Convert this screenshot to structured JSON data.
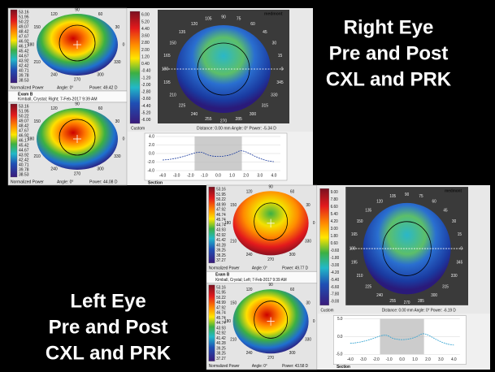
{
  "right_label": [
    "Right Eye",
    "Pre and Post",
    "CXL and PRK"
  ],
  "left_label": [
    "Left Eye",
    "Pre and Post",
    "CXL and PRK"
  ],
  "screens": [
    {
      "logo": "medmont",
      "map1": {
        "scale": [
          "53.16",
          "51.95",
          "50.22",
          "49.07",
          "48.42",
          "47.67",
          "46.92",
          "46.17",
          "45.42",
          "44.67",
          "43.92",
          "42.42",
          "40.71",
          "39.78",
          "38.53"
        ],
        "footer": [
          "Normalized Power",
          "Angle: 0°",
          "Power: 49.42 D"
        ],
        "angles": [
          "90",
          "120",
          "150",
          "180",
          "210",
          "240",
          "270",
          "300",
          "330",
          "0",
          "30",
          "60"
        ]
      },
      "exam": {
        "title": "Exam B",
        "patient": "Kimball, Crystal; Right; 7-Feb-2017 9:39 AM"
      },
      "map2": {
        "scale": [
          "53.16",
          "51.95",
          "50.22",
          "49.07",
          "48.42",
          "47.67",
          "46.92",
          "46.17",
          "45.42",
          "44.67",
          "43.92",
          "42.42",
          "40.71",
          "39.78",
          "38.53"
        ],
        "footer": [
          "Normalized Power",
          "Angle: 0°",
          "Power: 44.08 D"
        ],
        "angles": [
          "90",
          "120",
          "150",
          "180",
          "210",
          "240",
          "270",
          "300",
          "330",
          "0",
          "30",
          "60"
        ]
      },
      "diff": {
        "scale": [
          "6.00",
          "5.20",
          "4.40",
          "3.60",
          "2.80",
          "2.00",
          "1.20",
          "0.40",
          "-0.40",
          "-1.20",
          "-2.00",
          "-2.80",
          "-3.60",
          "-4.40",
          "-5.20",
          "-6.00"
        ],
        "custom": "Custom",
        "status": "Distance: 0.00 mm   Angle: 0°   Power: -5.34 D",
        "angles": [
          "90",
          "105",
          "120",
          "135",
          "150",
          "165",
          "180",
          "195",
          "210",
          "225",
          "240",
          "255",
          "270",
          "285",
          "300",
          "315",
          "330",
          "345",
          "0",
          "15",
          "30",
          "45",
          "60",
          "75"
        ]
      },
      "section": {
        "label": "Section",
        "yticks": [
          "4.0",
          "2.0",
          "0.0",
          "-2.0",
          "-4.0"
        ],
        "xticks": [
          "-4.0",
          "-3.0",
          "-2.0",
          "-1.0",
          "0.0",
          "1.0",
          "2.0",
          "3.0",
          "4.0"
        ]
      }
    },
    {
      "logo": "medmont",
      "map1": {
        "scale": [
          "53.16",
          "51.95",
          "50.22",
          "48.99",
          "47.92",
          "46.74",
          "45.74",
          "44.74",
          "43.93",
          "42.92",
          "41.42",
          "40.28",
          "39.25",
          "38.25",
          "37.27"
        ],
        "footer": [
          "Normalized Power",
          "Angle: 0°",
          "Power: 49.77 D"
        ],
        "angles": [
          "90",
          "120",
          "150",
          "180",
          "210",
          "240",
          "270",
          "300",
          "330",
          "0",
          "30",
          "60"
        ]
      },
      "exam": {
        "title": "Exam B",
        "patient": "Kimball, Crystal; Left; 7-Feb-2017 9:39 AM"
      },
      "map2": {
        "scale": [
          "53.16",
          "51.95",
          "50.22",
          "48.99",
          "47.92",
          "46.74",
          "45.74",
          "44.74",
          "43.93",
          "42.92",
          "41.42",
          "40.28",
          "39.25",
          "38.25",
          "37.27"
        ],
        "footer": [
          "Normalized Power",
          "Angle: 0°",
          "Power: 43.58 D"
        ],
        "angles": [
          "90",
          "120",
          "150",
          "180",
          "210",
          "240",
          "270",
          "300",
          "330",
          "0",
          "30",
          "60"
        ]
      },
      "diff": {
        "scale": [
          "9.00",
          "7.80",
          "6.60",
          "5.40",
          "4.20",
          "3.00",
          "1.80",
          "0.60",
          "-0.60",
          "-1.80",
          "-3.00",
          "-4.20",
          "-5.40",
          "-6.60",
          "-7.80",
          "-9.00"
        ],
        "custom": "Custom",
        "status": "Distance: 0.00 mm   Angle: 0°   Power: -6.19 D",
        "angles": [
          "90",
          "105",
          "120",
          "135",
          "150",
          "165",
          "180",
          "195",
          "210",
          "225",
          "240",
          "255",
          "270",
          "285",
          "300",
          "315",
          "330",
          "345",
          "0",
          "15",
          "30",
          "45",
          "60",
          "75"
        ]
      },
      "section": {
        "label": "Section",
        "yticks": [
          "5.0",
          "0.0",
          "-5.0"
        ],
        "xticks": [
          "-4.0",
          "-3.0",
          "-2.0",
          "-1.0",
          "0.0",
          "1.0",
          "2.0",
          "3.0",
          "4.0"
        ]
      }
    }
  ]
}
